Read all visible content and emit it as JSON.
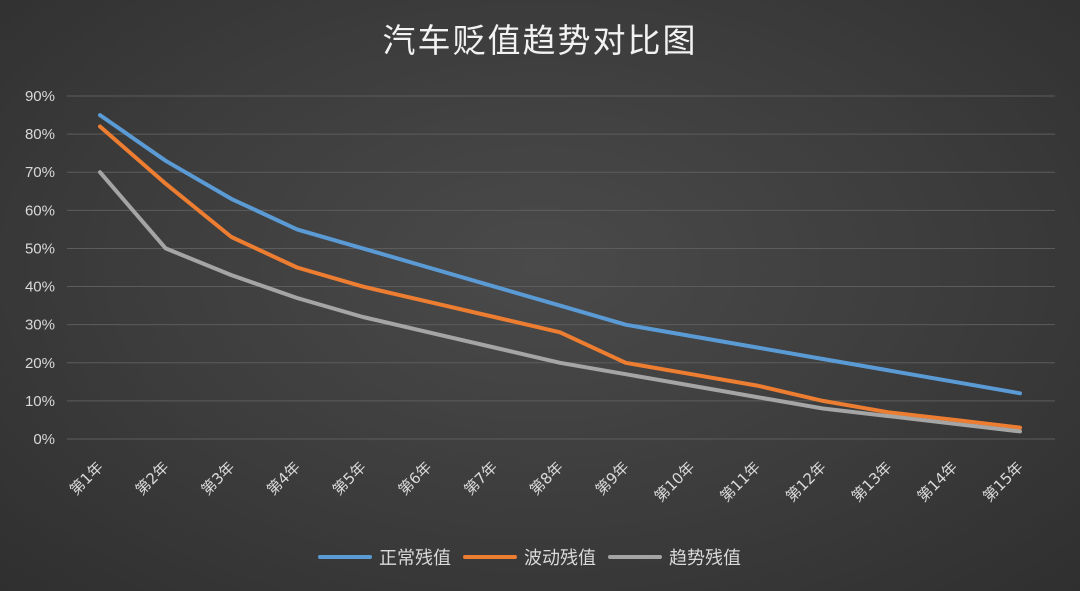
{
  "chart_data": {
    "type": "line",
    "title": "汽车贬值趋势对比图",
    "categories": [
      "第1年",
      "第2年",
      "第3年",
      "第4年",
      "第5年",
      "第6年",
      "第7年",
      "第8年",
      "第9年",
      "第10年",
      "第11年",
      "第12年",
      "第13年",
      "第14年",
      "第15年"
    ],
    "ylim": [
      0,
      0.9
    ],
    "yticks": [
      0,
      0.1,
      0.2,
      0.3,
      0.4,
      0.5,
      0.6,
      0.7,
      0.8,
      0.9
    ],
    "ytick_labels": [
      "0%",
      "10%",
      "20%",
      "30%",
      "40%",
      "50%",
      "60%",
      "70%",
      "80%",
      "90%"
    ],
    "grid": true,
    "legend_position": "bottom",
    "series": [
      {
        "name": "正常残值",
        "color": "#5b9bd5",
        "values": [
          0.85,
          0.73,
          0.63,
          0.55,
          0.5,
          0.45,
          0.4,
          0.35,
          0.3,
          0.27,
          0.24,
          0.21,
          0.18,
          0.15,
          0.12
        ]
      },
      {
        "name": "波动残值",
        "color": "#ed7d31",
        "values": [
          0.82,
          0.67,
          0.53,
          0.45,
          0.4,
          0.36,
          0.32,
          0.28,
          0.2,
          0.17,
          0.14,
          0.1,
          0.07,
          0.05,
          0.03
        ]
      },
      {
        "name": "趋势残值",
        "color": "#a5a5a5",
        "values": [
          0.7,
          0.5,
          0.43,
          0.37,
          0.32,
          0.28,
          0.24,
          0.2,
          0.17,
          0.14,
          0.11,
          0.08,
          0.06,
          0.04,
          0.02
        ]
      }
    ]
  }
}
